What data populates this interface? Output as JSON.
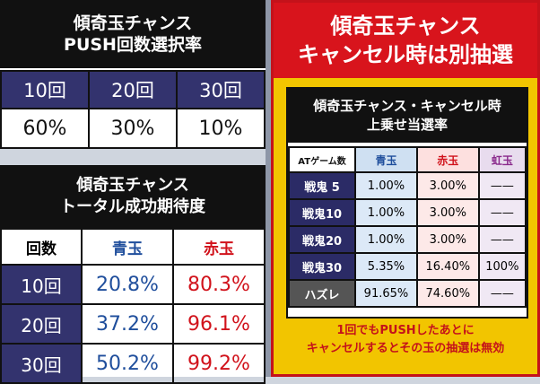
{
  "push_panel": {
    "title_line1": "傾奇玉チャンス",
    "title_line2": "PUSH回数選択率",
    "headers": [
      "10回",
      "20回",
      "30回"
    ],
    "values": [
      "60%",
      "30%",
      "10%"
    ]
  },
  "total_panel": {
    "title_line1": "傾奇玉チャンス",
    "title_line2": "トータル成功期待度",
    "col_count": "回数",
    "col_blue": "青玉",
    "col_red": "赤玉",
    "rows": [
      {
        "label": "10回",
        "blue": "20.8%",
        "red": "80.3%"
      },
      {
        "label": "20回",
        "blue": "37.2%",
        "red": "96.1%"
      },
      {
        "label": "30回",
        "blue": "50.2%",
        "red": "99.2%"
      }
    ]
  },
  "cancel_panel": {
    "title_line1": "傾奇玉チャンス",
    "title_line2": "キャンセル時は別抽選",
    "box_title_line1": "傾奇玉チャンス・キャンセル時",
    "box_title_line2": "上乗せ当選率",
    "col_at": "ATゲーム数",
    "col_blue": "青玉",
    "col_red": "赤玉",
    "col_rainbow": "虹玉",
    "rows": [
      {
        "label": "戦鬼 5",
        "blue": "1.00%",
        "red": "3.00%",
        "rainbow": "——"
      },
      {
        "label": "戦鬼10",
        "blue": "1.00%",
        "red": "3.00%",
        "rainbow": "——"
      },
      {
        "label": "戦鬼20",
        "blue": "1.00%",
        "red": "3.00%",
        "rainbow": "——"
      },
      {
        "label": "戦鬼30",
        "blue": "5.35%",
        "red": "16.40%",
        "rainbow": "100%"
      },
      {
        "label": "ハズレ",
        "blue": "91.65%",
        "red": "74.60%",
        "rainbow": "——"
      }
    ],
    "note_line1": "1回でもPUSHしたあとに",
    "note_line2": "キャンセルするとその玉の抽選は無効"
  }
}
